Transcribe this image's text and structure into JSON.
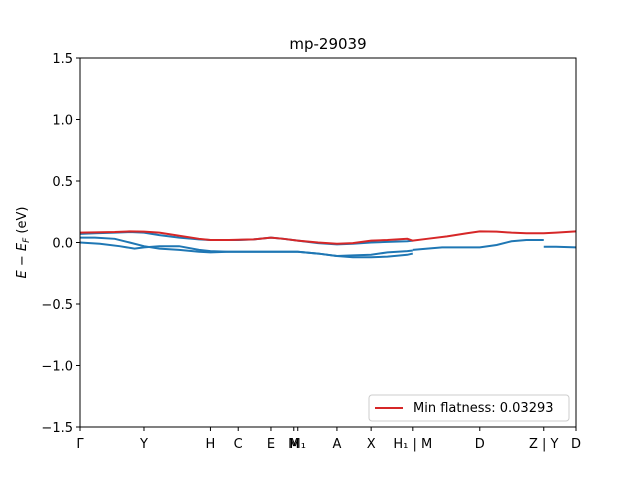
{
  "chart_data": {
    "type": "line",
    "title": "mp-29039",
    "xlabel": "",
    "ylabel": "E − E_F (eV)",
    "ylim": [
      -1.5,
      1.5
    ],
    "yticks": [
      "−1.5",
      "−1.0",
      "−0.5",
      "0.0",
      "0.5",
      "1.0",
      "1.5"
    ],
    "ytick_values": [
      -1.5,
      -1.0,
      -0.5,
      0.0,
      0.5,
      1.0,
      1.5
    ],
    "xlim": [
      0,
      1
    ],
    "xticks": [
      {
        "label": "Γ",
        "pos": 0.0
      },
      {
        "label": "Y",
        "pos": 0.129
      },
      {
        "label": "H",
        "pos": 0.263
      },
      {
        "label": "C",
        "pos": 0.319
      },
      {
        "label": "E",
        "pos": 0.385
      },
      {
        "label": "M",
        "pos": 0.431
      },
      {
        "label": "M₁",
        "pos": 0.439
      },
      {
        "label": "A",
        "pos": 0.518
      },
      {
        "label": "X",
        "pos": 0.587
      },
      {
        "label": "H₁ | M",
        "pos": 0.671
      },
      {
        "label": "D",
        "pos": 0.806
      },
      {
        "label": "Z | Y",
        "pos": 0.935
      },
      {
        "label": "D",
        "pos": 1.0
      }
    ],
    "legend": {
      "position": "bottom-right",
      "entries": [
        {
          "label": "Min flatness: 0.03293",
          "color": "#d62728"
        }
      ]
    },
    "grid": false,
    "series": [
      {
        "color": "#1f77b4",
        "x": [
          0,
          0.03,
          0.07,
          0.1,
          0.129,
          0.16,
          0.2,
          0.24,
          0.263,
          0.3,
          0.319,
          0.35,
          0.385,
          0.41,
          0.439,
          0.48,
          0.518,
          0.55,
          0.587,
          0.62,
          0.66,
          0.671
        ],
        "y": [
          0.04,
          0.04,
          0.03,
          0.0,
          -0.03,
          -0.05,
          -0.06,
          -0.075,
          -0.08,
          -0.075,
          -0.075,
          -0.075,
          -0.075,
          -0.075,
          -0.075,
          -0.09,
          -0.11,
          -0.12,
          -0.12,
          -0.115,
          -0.1,
          -0.09
        ]
      },
      {
        "color": "#1f77b4",
        "x": [
          0,
          0.04,
          0.08,
          0.11,
          0.129,
          0.16,
          0.2,
          0.24,
          0.263,
          0.3,
          0.319,
          0.35,
          0.385,
          0.41,
          0.439,
          0.48,
          0.518,
          0.55,
          0.587,
          0.62,
          0.66,
          0.671
        ],
        "y": [
          0.0,
          -0.01,
          -0.03,
          -0.05,
          -0.04,
          -0.03,
          -0.03,
          -0.06,
          -0.07,
          -0.075,
          -0.075,
          -0.075,
          -0.075,
          -0.075,
          -0.075,
          -0.09,
          -0.11,
          -0.105,
          -0.1,
          -0.08,
          -0.07,
          -0.065
        ]
      },
      {
        "color": "#1f77b4",
        "x": [
          0.671,
          0.7,
          0.73,
          0.76,
          0.806,
          0.84,
          0.87,
          0.9,
          0.935
        ],
        "y": [
          -0.06,
          -0.05,
          -0.04,
          -0.04,
          -0.04,
          -0.02,
          0.01,
          0.02,
          0.02
        ]
      },
      {
        "color": "#1f77b4",
        "x": [
          0.935,
          0.96,
          1.0
        ],
        "y": [
          -0.035,
          -0.035,
          -0.04
        ]
      },
      {
        "color": "#1f77b4",
        "x": [
          0,
          0.03,
          0.07,
          0.1,
          0.129,
          0.16,
          0.2,
          0.24,
          0.263,
          0.3,
          0.319,
          0.35,
          0.385,
          0.41,
          0.439,
          0.48,
          0.518,
          0.55,
          0.587,
          0.62,
          0.66,
          0.671
        ],
        "y": [
          0.07,
          0.075,
          0.08,
          0.085,
          0.08,
          0.06,
          0.04,
          0.025,
          0.02,
          0.02,
          0.02,
          0.025,
          0.04,
          0.03,
          0.015,
          -0.005,
          -0.015,
          -0.01,
          0.0,
          0.005,
          0.01,
          0.015
        ]
      },
      {
        "color": "#d62728",
        "x": [
          0,
          0.03,
          0.07,
          0.1,
          0.129,
          0.16,
          0.2,
          0.24,
          0.263,
          0.3,
          0.319,
          0.35,
          0.385,
          0.41,
          0.439,
          0.48,
          0.518,
          0.55,
          0.587,
          0.62,
          0.66,
          0.671,
          0.7,
          0.74,
          0.78,
          0.806,
          0.84,
          0.87,
          0.9,
          0.935,
          0.96,
          1.0
        ],
        "y": [
          0.08,
          0.082,
          0.085,
          0.09,
          0.088,
          0.08,
          0.055,
          0.03,
          0.02,
          0.02,
          0.022,
          0.025,
          0.04,
          0.03,
          0.015,
          0.0,
          -0.01,
          -0.005,
          0.015,
          0.02,
          0.03,
          0.015,
          0.03,
          0.05,
          0.075,
          0.09,
          0.088,
          0.08,
          0.075,
          0.075,
          0.08,
          0.09
        ]
      }
    ]
  }
}
